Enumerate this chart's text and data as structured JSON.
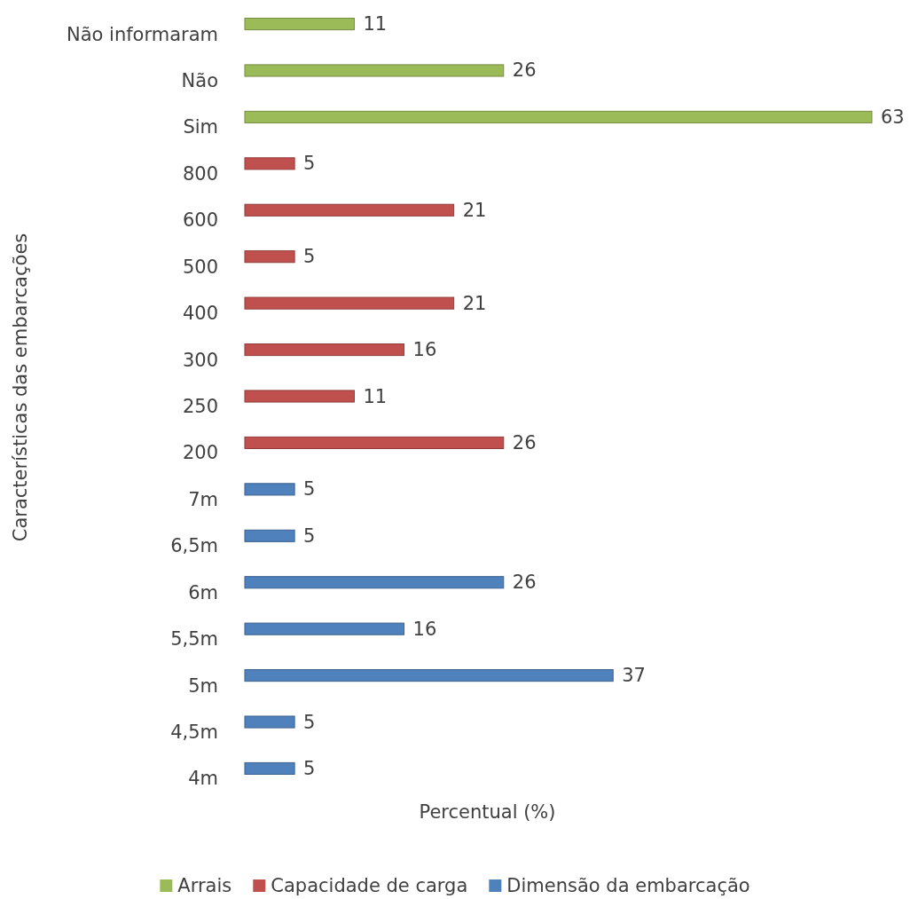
{
  "chart_data": {
    "type": "bar",
    "orientation": "horizontal",
    "xlabel": "Percentual (%)",
    "ylabel": "Características das embarcações",
    "categories": [
      "Não informaram",
      "Não",
      "Sim",
      "800",
      "600",
      "500",
      "400",
      "300",
      "250",
      "200",
      "7m",
      "6,5m",
      "6m",
      "5,5m",
      "5m",
      "4,5m",
      "4m"
    ],
    "series": [
      {
        "name": "Arrais",
        "color": "#9bbb59",
        "values": [
          11,
          26,
          63,
          null,
          null,
          null,
          null,
          null,
          null,
          null,
          null,
          null,
          null,
          null,
          null,
          null,
          null
        ]
      },
      {
        "name": "Capacidade de carga",
        "color": "#c0504d",
        "values": [
          null,
          null,
          null,
          5,
          21,
          5,
          21,
          16,
          11,
          26,
          null,
          null,
          null,
          null,
          null,
          null,
          null
        ]
      },
      {
        "name": "Dimensão da embarcação",
        "color": "#4f81bd",
        "values": [
          null,
          null,
          null,
          null,
          null,
          null,
          null,
          null,
          null,
          null,
          5,
          5,
          26,
          16,
          37,
          5,
          5
        ]
      }
    ],
    "data_labels": true,
    "legend": "bottom",
    "grid": false
  }
}
